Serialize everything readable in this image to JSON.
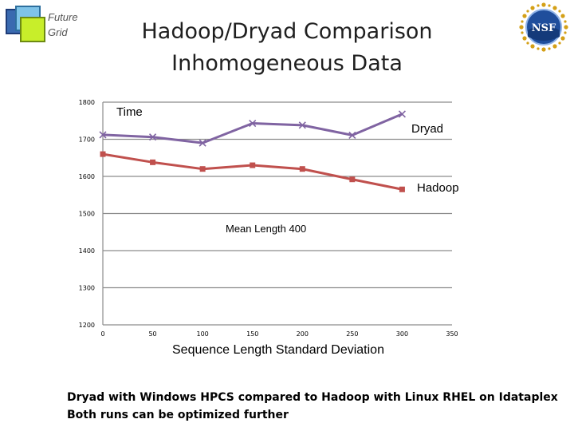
{
  "header": {
    "logo_text_line1": "Future",
    "logo_text_line2": "Grid",
    "title_line1": "Hadoop/Dryad Comparison",
    "title_line2": "Inhomogeneous Data",
    "nsf_label": "NSF"
  },
  "chart_data": {
    "type": "line",
    "title": "Time",
    "annotation": "Mean Length 400",
    "xlabel": "Sequence Length Standard Deviation",
    "ylabel": "",
    "xlim": [
      0,
      350
    ],
    "ylim": [
      1200,
      1800
    ],
    "xticks": [
      0,
      50,
      100,
      150,
      200,
      250,
      300,
      350
    ],
    "yticks": [
      1200,
      1300,
      1400,
      1500,
      1600,
      1700,
      1800
    ],
    "grid": true,
    "series": [
      {
        "name": "Dryad",
        "color": "#8064a2",
        "marker": "x",
        "x": [
          0,
          50,
          100,
          150,
          200,
          250,
          300
        ],
        "values": [
          1712,
          1706,
          1690,
          1743,
          1738,
          1711,
          1768
        ]
      },
      {
        "name": "Hadoop",
        "color": "#c0504d",
        "marker": "square",
        "x": [
          0,
          50,
          100,
          150,
          200,
          250,
          300
        ],
        "values": [
          1660,
          1638,
          1620,
          1630,
          1620,
          1592,
          1565
        ]
      }
    ]
  },
  "caption": {
    "line1": "Dryad with Windows HPCS compared to Hadoop with Linux RHEL on Idataplex",
    "line2": "Both runs can be optimized further"
  }
}
